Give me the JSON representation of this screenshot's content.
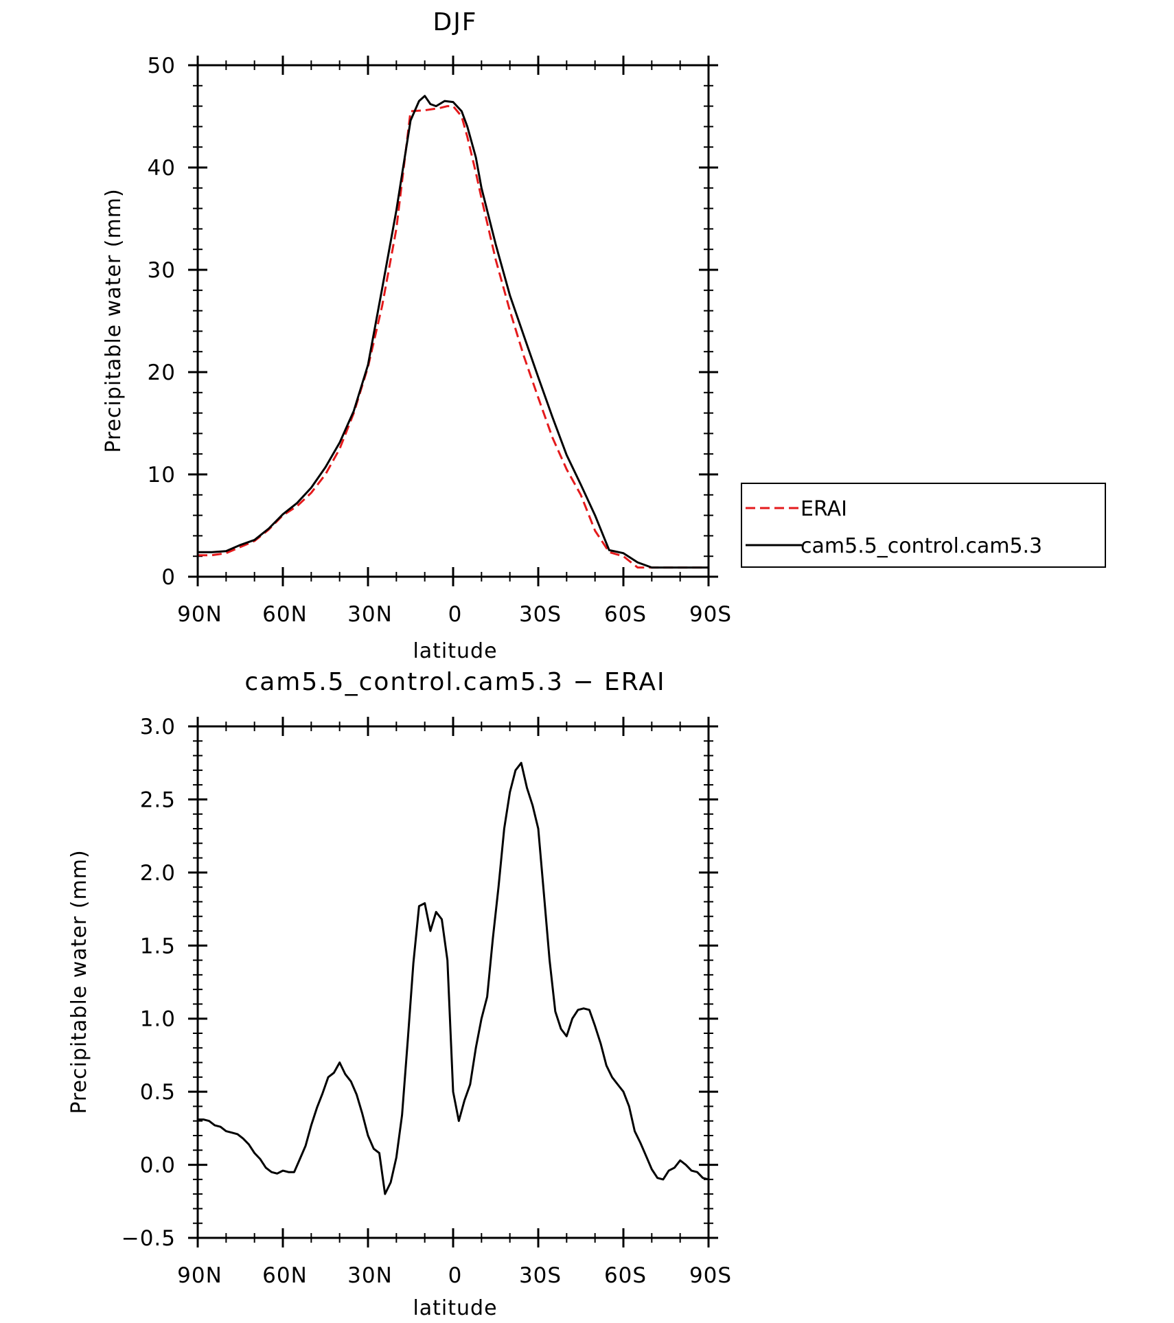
{
  "chart_data": [
    {
      "type": "line",
      "title": "DJF",
      "xlabel": "latitude",
      "ylabel": "Precipitable water (mm)",
      "xlim": [
        90,
        -90
      ],
      "ylim": [
        0,
        50
      ],
      "x_ticks": [
        90,
        60,
        30,
        0,
        -30,
        -60,
        -90
      ],
      "x_tick_labels": [
        "90N",
        "60N",
        "30N",
        "0",
        "30S",
        "60S",
        "90S"
      ],
      "y_ticks": [
        0,
        10,
        20,
        30,
        40,
        50
      ],
      "y_tick_labels": [
        "0",
        "10",
        "20",
        "30",
        "40",
        "50"
      ],
      "legend_position": "right",
      "series": [
        {
          "name": "ERAI",
          "color": "#e41a1c",
          "dash": "dashed",
          "x": [
            90,
            85,
            80,
            75,
            70,
            65,
            60,
            55,
            50,
            45,
            40,
            35,
            30,
            25,
            20,
            15,
            10,
            5,
            2,
            0,
            -3,
            -5,
            -8,
            -10,
            -15,
            -20,
            -25,
            -30,
            -35,
            -40,
            -45,
            -50,
            -55,
            -60,
            -65,
            -70,
            -75,
            -80,
            -85,
            -90
          ],
          "values": [
            2.1,
            2.1,
            2.3,
            2.9,
            3.5,
            4.6,
            6.0,
            6.9,
            8.2,
            10.0,
            12.5,
            16.0,
            20.5,
            26.5,
            34.0,
            45.5,
            45.6,
            45.8,
            46.0,
            46.0,
            45.0,
            43.0,
            39.5,
            37.0,
            31.0,
            26.0,
            21.5,
            17.5,
            13.6,
            10.5,
            8.0,
            4.5,
            2.4,
            2.0,
            0.9,
            0.9,
            0.9,
            0.9,
            0.9,
            0.9
          ]
        },
        {
          "name": "cam5.5_control.cam5.3",
          "color": "#000000",
          "dash": "solid",
          "x": [
            90,
            85,
            80,
            75,
            70,
            65,
            60,
            55,
            50,
            45,
            40,
            35,
            30,
            25,
            20,
            15,
            12,
            10,
            8,
            6,
            3,
            0,
            -3,
            -5,
            -8,
            -10,
            -15,
            -20,
            -25,
            -30,
            -35,
            -40,
            -45,
            -50,
            -55,
            -60,
            -65,
            -70,
            -75,
            -80,
            -85,
            -90
          ],
          "values": [
            2.4,
            2.4,
            2.5,
            3.1,
            3.6,
            4.7,
            6.1,
            7.2,
            8.7,
            10.7,
            13.1,
            16.2,
            20.7,
            28.2,
            35.8,
            44.6,
            46.5,
            47.0,
            46.2,
            46.0,
            46.5,
            46.4,
            45.5,
            44.0,
            41.0,
            38.0,
            32.5,
            27.5,
            23.5,
            19.5,
            15.6,
            11.9,
            9.0,
            6.0,
            2.6,
            2.3,
            1.4,
            0.9,
            0.9,
            0.9,
            0.9,
            0.9
          ]
        }
      ]
    },
    {
      "type": "line",
      "title": "cam5.5_control.cam5.3 − ERAI",
      "xlabel": "latitude",
      "ylabel": "Precipitable water (mm)",
      "xlim": [
        90,
        -90
      ],
      "ylim": [
        -0.5,
        3.0
      ],
      "x_ticks": [
        90,
        60,
        30,
        0,
        -30,
        -60,
        -90
      ],
      "x_tick_labels": [
        "90N",
        "60N",
        "30N",
        "0",
        "30S",
        "60S",
        "90S"
      ],
      "y_ticks": [
        -0.5,
        0.0,
        0.5,
        1.0,
        1.5,
        2.0,
        2.5,
        3.0
      ],
      "y_tick_labels": [
        "−0.5",
        "0.0",
        "0.5",
        "1.0",
        "1.5",
        "2.0",
        "2.5",
        "3.0"
      ],
      "series": [
        {
          "color": "#000000",
          "x": [
            90,
            88,
            86,
            84,
            82,
            80,
            78,
            76,
            74,
            72,
            70,
            68,
            66,
            64,
            62,
            60,
            58,
            56,
            54,
            52,
            50,
            48,
            46,
            44,
            42,
            40,
            38,
            36,
            34,
            32,
            30,
            28,
            26,
            24,
            22,
            20,
            18,
            16,
            14,
            12,
            10,
            8,
            6,
            4,
            2,
            0,
            -2,
            -4,
            -6,
            -8,
            -10,
            -12,
            -14,
            -16,
            -18,
            -20,
            -22,
            -24,
            -26,
            -28,
            -30,
            -32,
            -34,
            -36,
            -38,
            -40,
            -42,
            -44,
            -46,
            -48,
            -50,
            -52,
            -54,
            -56,
            -58,
            -60,
            -62,
            -64,
            -66,
            -68,
            -70,
            -72,
            -74,
            -76,
            -78,
            -80,
            -82,
            -84,
            -86,
            -88,
            -90
          ],
          "values": [
            0.31,
            0.31,
            0.3,
            0.27,
            0.26,
            0.23,
            0.22,
            0.21,
            0.18,
            0.14,
            0.08,
            0.04,
            -0.02,
            -0.05,
            -0.06,
            -0.04,
            -0.05,
            -0.05,
            0.04,
            0.13,
            0.27,
            0.39,
            0.49,
            0.6,
            0.63,
            0.7,
            0.62,
            0.57,
            0.48,
            0.35,
            0.2,
            0.11,
            0.08,
            -0.2,
            -0.12,
            0.05,
            0.34,
            0.85,
            1.38,
            1.77,
            1.79,
            1.6,
            1.73,
            1.68,
            1.4,
            0.5,
            0.3,
            0.44,
            0.55,
            0.8,
            1.0,
            1.15,
            1.55,
            1.9,
            2.3,
            2.55,
            2.7,
            2.75,
            2.58,
            2.46,
            2.3,
            1.85,
            1.4,
            1.05,
            0.93,
            0.88,
            1.0,
            1.06,
            1.07,
            1.06,
            0.95,
            0.83,
            0.68,
            0.6,
            0.55,
            0.5,
            0.4,
            0.23,
            0.15,
            0.06,
            -0.03,
            -0.09,
            -0.1,
            -0.04,
            -0.02,
            0.03,
            0.0,
            -0.04,
            -0.05,
            -0.09,
            -0.1
          ]
        }
      ]
    }
  ]
}
